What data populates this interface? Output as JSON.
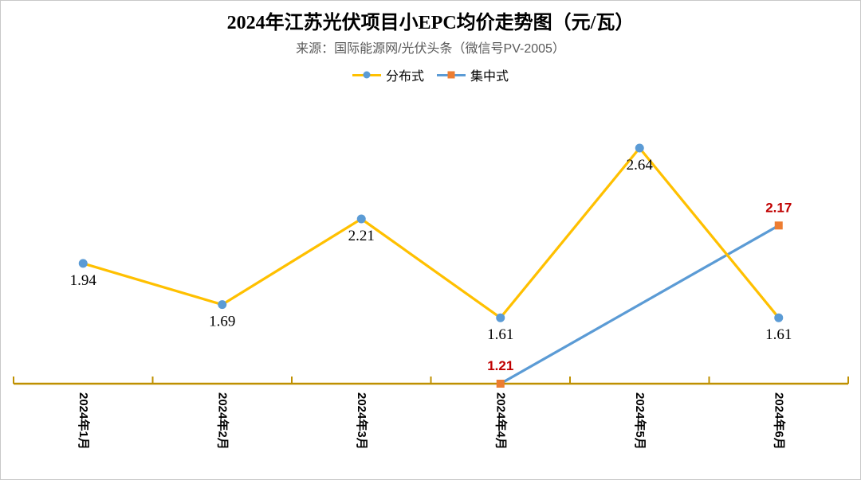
{
  "window": {
    "background": "#ffffff",
    "border_color": "#c8c8c8"
  },
  "header": {
    "title": "2024年江苏光伏项目小EPC均价走势图（元/瓦）",
    "source_line": "来源：国际能源网/光伏头条（微信号PV-2005）"
  },
  "legend": {
    "position": "top",
    "items": [
      {
        "label": "分布式",
        "line_color": "#FFC000",
        "marker_shape": "circle",
        "marker_color": "#5B9BD5"
      },
      {
        "label": "集中式",
        "line_color": "#5B9BD5",
        "marker_shape": "square",
        "marker_color": "#ED7D31"
      }
    ]
  },
  "chart_data": {
    "type": "line",
    "title": "2024年江苏光伏项目小EPC均价走势图（元/瓦）",
    "subtitle": "来源：国际能源网/光伏头条（微信号PV-2005）",
    "categories": [
      "2024年1月",
      "2024年2月",
      "2024年3月",
      "2024年4月",
      "2024年5月",
      "2024年6月"
    ],
    "series": [
      {
        "name": "分布式",
        "values": [
          1.94,
          1.69,
          2.21,
          1.61,
          2.64,
          1.61
        ],
        "data_labels": [
          "1.94",
          "1.69",
          "2.21",
          "1.61",
          "2.64",
          "1.61"
        ],
        "line_color": "#FFC000",
        "marker_shape": "circle",
        "marker_color": "#5B9BD5",
        "label_color": "#000000",
        "label_position": "below"
      },
      {
        "name": "集中式",
        "values": [
          null,
          null,
          null,
          1.21,
          null,
          2.17
        ],
        "data_labels": [
          null,
          null,
          null,
          "1.21",
          null,
          "2.17"
        ],
        "line_color": "#5B9BD5",
        "marker_shape": "square",
        "marker_color": "#ED7D31",
        "label_color": "#C00000",
        "label_position": "above"
      }
    ],
    "xlabel": "",
    "ylabel": "",
    "ylim": [
      1.21,
      2.95
    ],
    "grid": false,
    "y_axis_visible": false,
    "x_tick_label_rotation_deg": 90,
    "axis_color": "#BF9000",
    "legend_position": "top"
  }
}
